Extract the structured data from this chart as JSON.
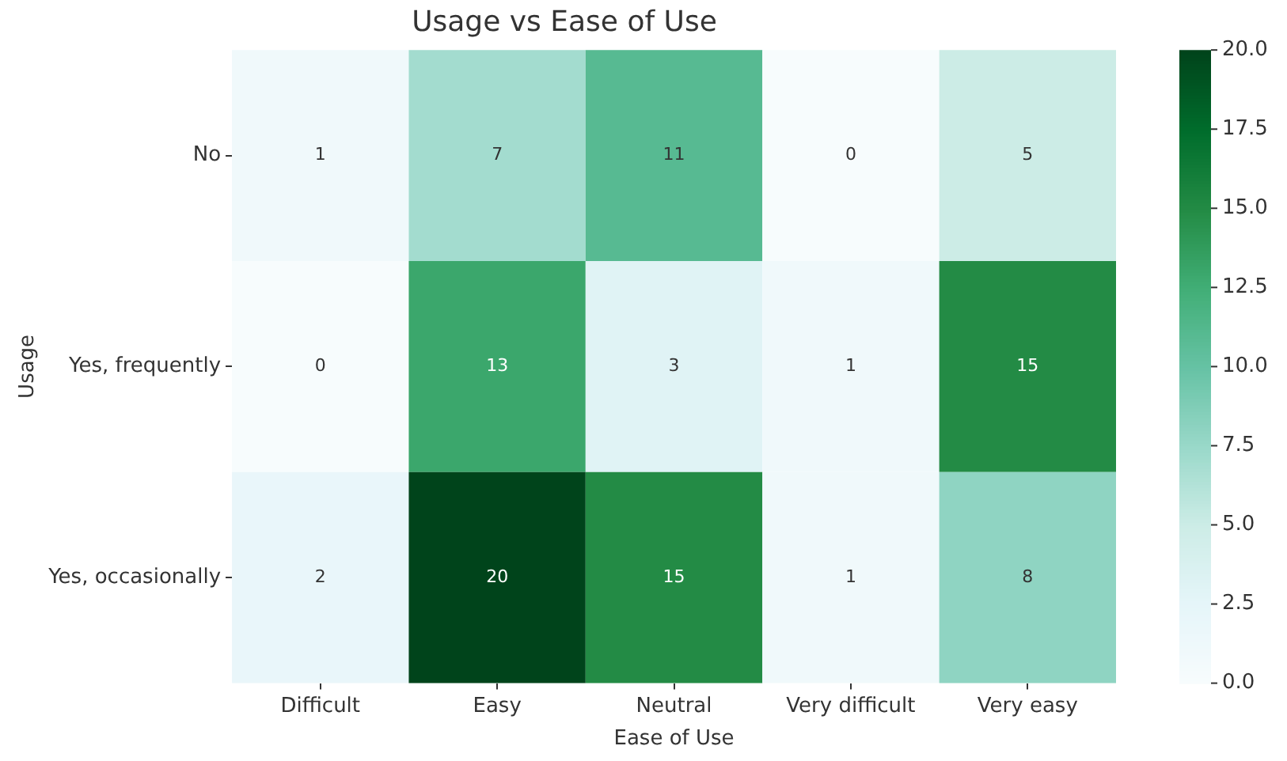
{
  "chart_data": {
    "type": "heatmap",
    "title": "Usage vs Ease of Use",
    "xlabel": "Ease of Use",
    "ylabel": "Usage",
    "categories": [
      "Difficult",
      "Easy",
      "Neutral",
      "Very difficult",
      "Very easy"
    ],
    "y_categories": [
      "No",
      "Yes, frequently",
      "Yes, occasionally"
    ],
    "cells": [
      [
        1,
        7,
        11,
        0,
        5
      ],
      [
        0,
        13,
        3,
        1,
        15
      ],
      [
        2,
        20,
        15,
        1,
        8
      ]
    ],
    "data_labels": true,
    "clim": [
      0,
      20
    ],
    "cticks": [
      {
        "value": 0,
        "label": "0.0"
      },
      {
        "value": 2.5,
        "label": "2.5"
      },
      {
        "value": 5,
        "label": "5.0"
      },
      {
        "value": 7.5,
        "label": "7.5"
      },
      {
        "value": 10,
        "label": "10.0"
      },
      {
        "value": 12.5,
        "label": "12.5"
      },
      {
        "value": 15,
        "label": "15.0"
      },
      {
        "value": 17.5,
        "label": "17.5"
      },
      {
        "value": 20,
        "label": "20.0"
      }
    ]
  }
}
